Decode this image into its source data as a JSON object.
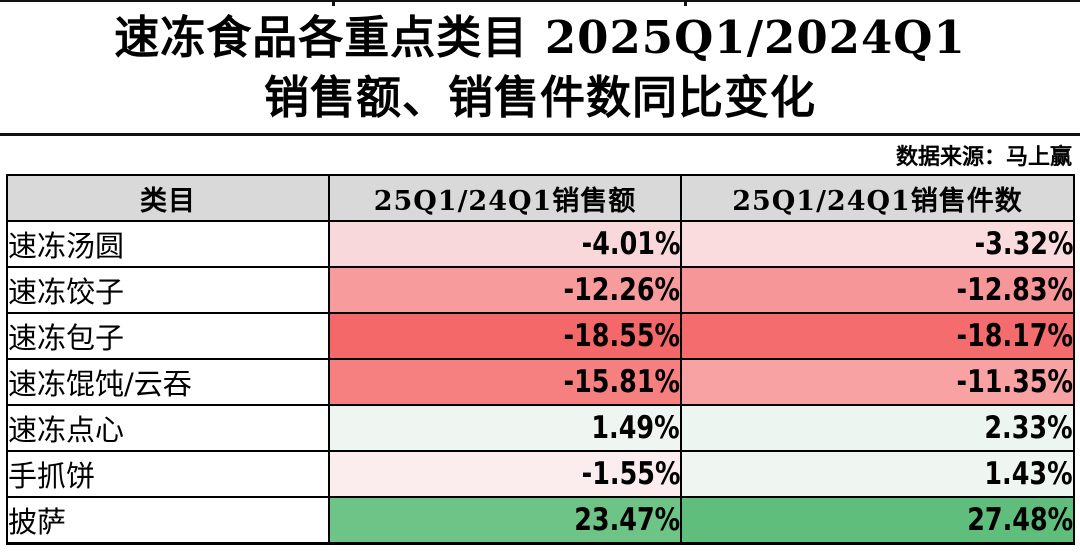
{
  "title": {
    "line1": "速冻食品各重点类目 2025Q1/2024Q1",
    "line2": "销售额、销售件数同比变化"
  },
  "source": {
    "label": "数据来源：马上赢"
  },
  "colors": {
    "header_bg": "#D9D9D9",
    "border": "#000000",
    "negative_strong": "#F5686A",
    "positive_strong": "#5FBE7B"
  },
  "table": {
    "columns": [
      "类目",
      "25Q1/24Q1销售额",
      "25Q1/24Q1销售件数"
    ],
    "rows": [
      {
        "category": "速冻汤圆",
        "sales_value": "-4.01%",
        "sales_units": "-3.32%",
        "sales_value_bg": "#F9D8DB",
        "sales_units_bg": "#FADBDE"
      },
      {
        "category": "速冻饺子",
        "sales_value": "-12.26%",
        "sales_units": "-12.83%",
        "sales_value_bg": "#F79B9C",
        "sales_units_bg": "#F79698"
      },
      {
        "category": "速冻包子",
        "sales_value": "-18.55%",
        "sales_units": "-18.17%",
        "sales_value_bg": "#F5686A",
        "sales_units_bg": "#F56C6E"
      },
      {
        "category": "速冻馄饨/云吞",
        "sales_value": "-15.81%",
        "sales_units": "-11.35%",
        "sales_value_bg": "#F67F80",
        "sales_units_bg": "#F8A2A3"
      },
      {
        "category": "速冻点心",
        "sales_value": "1.49%",
        "sales_units": "2.33%",
        "sales_value_bg": "#EFF6F1",
        "sales_units_bg": "#ECF5EF"
      },
      {
        "category": "手抓饼",
        "sales_value": "-1.55%",
        "sales_units": "1.43%",
        "sales_value_bg": "#FBECEE",
        "sales_units_bg": "#EFF6F2"
      },
      {
        "category": "披萨",
        "sales_value": "23.47%",
        "sales_units": "27.48%",
        "sales_value_bg": "#6EC386",
        "sales_units_bg": "#5FBE7B"
      }
    ]
  },
  "chart_data": {
    "type": "table",
    "title": "速冻食品各重点类目 2025Q1/2024Q1 销售额、销售件数同比变化",
    "source": "数据来源：马上赢",
    "columns": [
      "类目",
      "25Q1/24Q1销售额",
      "25Q1/24Q1销售件数"
    ],
    "categories": [
      "速冻汤圆",
      "速冻饺子",
      "速冻包子",
      "速冻馄饨/云吞",
      "速冻点心",
      "手抓饼",
      "披萨"
    ],
    "series": [
      {
        "name": "25Q1/24Q1销售额",
        "unit": "%",
        "values": [
          -4.01,
          -12.26,
          -18.55,
          -15.81,
          1.49,
          -1.55,
          23.47
        ]
      },
      {
        "name": "25Q1/24Q1销售件数",
        "unit": "%",
        "values": [
          -3.32,
          -12.83,
          -18.17,
          -11.35,
          2.33,
          1.43,
          27.48
        ]
      }
    ],
    "layout_hints": {
      "conditional_formatting": "red shades = negative (deeper = larger decline), green shades = positive (deeper = larger growth)",
      "header_background": "#D9D9D9",
      "grid": true
    }
  }
}
